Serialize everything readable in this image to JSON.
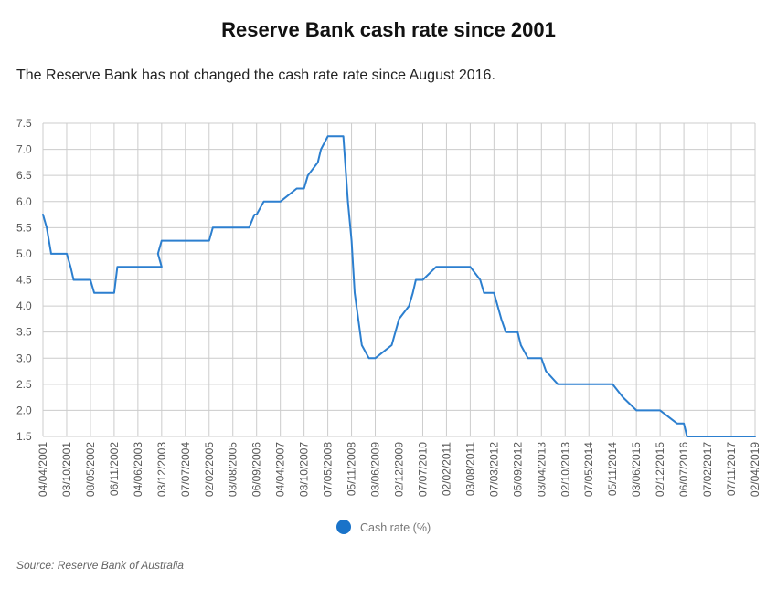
{
  "header": {
    "title": "Reserve Bank cash rate since 2001",
    "subtitle": "The Reserve Bank has not changed the cash rate rate since August 2016."
  },
  "footer": {
    "source": "Source: Reserve Bank of Australia"
  },
  "colors": {
    "series": "#2c7fcf",
    "grid": "#cccccc",
    "legend_marker": "#1a73c9"
  },
  "chart_data": {
    "type": "line",
    "xlabel": "",
    "ylabel": "",
    "ylim": [
      1.5,
      7.5
    ],
    "y_ticks": [
      "1.5",
      "2.0",
      "2.5",
      "3.0",
      "3.5",
      "4.0",
      "4.5",
      "5.0",
      "5.5",
      "6.0",
      "6.5",
      "7.0",
      "7.5"
    ],
    "x_ticks": [
      "04/04/2001",
      "03/10/2001",
      "08/05/2002",
      "06/11/2002",
      "04/06/2003",
      "03/12/2003",
      "07/07/2004",
      "02/02/2005",
      "03/08/2005",
      "06/09/2006",
      "04/04/2007",
      "03/10/2007",
      "07/05/2008",
      "05/11/2008",
      "03/06/2009",
      "02/12/2009",
      "07/07/2010",
      "02/02/2011",
      "03/08/2011",
      "07/03/2012",
      "05/09/2012",
      "03/04/2013",
      "02/10/2013",
      "07/05/2014",
      "05/11/2014",
      "03/06/2015",
      "02/12/2015",
      "06/07/2016",
      "07/02/2017",
      "07/11/2017",
      "02/04/2019"
    ],
    "grid": true,
    "legend_position": "bottom-center",
    "series": [
      {
        "name": "Cash rate (%)",
        "points": [
          [
            "04/04/2001",
            5.75
          ],
          [
            "03/05/2001",
            5.5
          ],
          [
            "06/06/2001",
            5.0
          ],
          [
            "03/10/2001",
            5.0
          ],
          [
            "07/11/2001",
            4.75
          ],
          [
            "05/12/2001",
            4.5
          ],
          [
            "08/05/2002",
            4.5
          ],
          [
            "06/06/2002",
            4.25
          ],
          [
            "06/11/2002",
            4.25
          ],
          [
            "04/12/2002",
            4.75
          ],
          [
            "04/06/2003",
            4.75
          ],
          [
            "03/12/2003",
            4.75
          ],
          [
            "05/11/2003",
            5.0
          ],
          [
            "03/12/2003",
            5.25
          ],
          [
            "07/07/2004",
            5.25
          ],
          [
            "02/02/2005",
            5.25
          ],
          [
            "02/03/2005",
            5.5
          ],
          [
            "03/08/2005",
            5.5
          ],
          [
            "03/05/2006",
            5.5
          ],
          [
            "02/08/2006",
            5.75
          ],
          [
            "06/09/2006",
            5.75
          ],
          [
            "08/11/2006",
            6.0
          ],
          [
            "04/04/2007",
            6.0
          ],
          [
            "08/08/2007",
            6.25
          ],
          [
            "03/10/2007",
            6.25
          ],
          [
            "07/11/2007",
            6.5
          ],
          [
            "06/02/2008",
            6.75
          ],
          [
            "05/03/2008",
            7.0
          ],
          [
            "07/05/2008",
            7.25
          ],
          [
            "03/09/2008",
            7.25
          ],
          [
            "08/10/2008",
            6.0
          ],
          [
            "05/11/2008",
            5.25
          ],
          [
            "03/12/2008",
            4.25
          ],
          [
            "04/02/2009",
            3.25
          ],
          [
            "08/04/2009",
            3.0
          ],
          [
            "03/06/2009",
            3.0
          ],
          [
            "07/10/2009",
            3.25
          ],
          [
            "04/11/2009",
            3.5
          ],
          [
            "02/12/2009",
            3.75
          ],
          [
            "03/03/2010",
            4.0
          ],
          [
            "07/04/2010",
            4.25
          ],
          [
            "05/05/2010",
            4.5
          ],
          [
            "07/07/2010",
            4.5
          ],
          [
            "03/11/2010",
            4.75
          ],
          [
            "02/02/2011",
            4.75
          ],
          [
            "03/08/2011",
            4.75
          ],
          [
            "02/11/2011",
            4.5
          ],
          [
            "07/12/2011",
            4.25
          ],
          [
            "07/03/2012",
            4.25
          ],
          [
            "02/05/2012",
            3.75
          ],
          [
            "06/06/2012",
            3.5
          ],
          [
            "05/09/2012",
            3.5
          ],
          [
            "03/10/2012",
            3.25
          ],
          [
            "05/12/2012",
            3.0
          ],
          [
            "03/04/2013",
            3.0
          ],
          [
            "08/05/2013",
            2.75
          ],
          [
            "07/08/2013",
            2.5
          ],
          [
            "02/10/2013",
            2.5
          ],
          [
            "07/05/2014",
            2.5
          ],
          [
            "05/11/2014",
            2.5
          ],
          [
            "04/02/2015",
            2.25
          ],
          [
            "03/06/2015",
            2.0
          ],
          [
            "02/12/2015",
            2.0
          ],
          [
            "04/05/2016",
            1.75
          ],
          [
            "06/07/2016",
            1.75
          ],
          [
            "03/08/2016",
            1.5
          ],
          [
            "07/02/2017",
            1.5
          ],
          [
            "07/11/2017",
            1.5
          ],
          [
            "02/04/2019",
            1.5
          ]
        ]
      }
    ]
  }
}
